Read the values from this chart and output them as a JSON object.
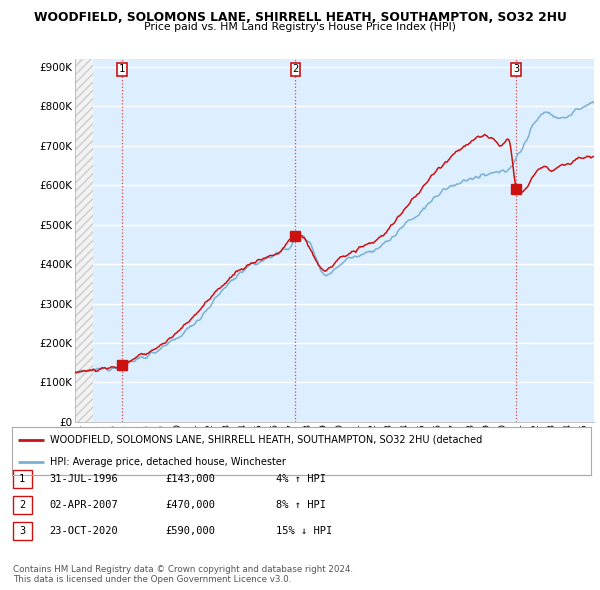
{
  "title": "WOODFIELD, SOLOMONS LANE, SHIRRELL HEATH, SOUTHAMPTON, SO32 2HU",
  "subtitle": "Price paid vs. HM Land Registry's House Price Index (HPI)",
  "ytick_values": [
    0,
    100000,
    200000,
    300000,
    400000,
    500000,
    600000,
    700000,
    800000,
    900000
  ],
  "ylim": [
    0,
    920000
  ],
  "xlim_start": 1993.7,
  "xlim_end": 2025.6,
  "hatch_end": 1994.83,
  "sale_dates": [
    1996.58,
    2007.25,
    2020.81
  ],
  "sale_prices": [
    143000,
    470000,
    590000
  ],
  "sale_labels": [
    "1",
    "2",
    "3"
  ],
  "legend_line1": "WOODFIELD, SOLOMONS LANE, SHIRRELL HEATH, SOUTHAMPTON, SO32 2HU (detached",
  "legend_line2": "HPI: Average price, detached house, Winchester",
  "table_rows": [
    {
      "num": "1",
      "date": "31-JUL-1996",
      "price": "£143,000",
      "change": "4% ↑ HPI"
    },
    {
      "num": "2",
      "date": "02-APR-2007",
      "price": "£470,000",
      "change": "8% ↑ HPI"
    },
    {
      "num": "3",
      "date": "23-OCT-2020",
      "price": "£590,000",
      "change": "15% ↓ HPI"
    }
  ],
  "footnote": "Contains HM Land Registry data © Crown copyright and database right 2024.\nThis data is licensed under the Open Government Licence v3.0.",
  "hpi_color": "#7ab0d4",
  "price_color": "#cc1111",
  "background_color": "#ffffff",
  "plot_bg_color": "#ddeeff",
  "grid_color": "#ffffff",
  "hatch_bg": "#f0f0f0"
}
